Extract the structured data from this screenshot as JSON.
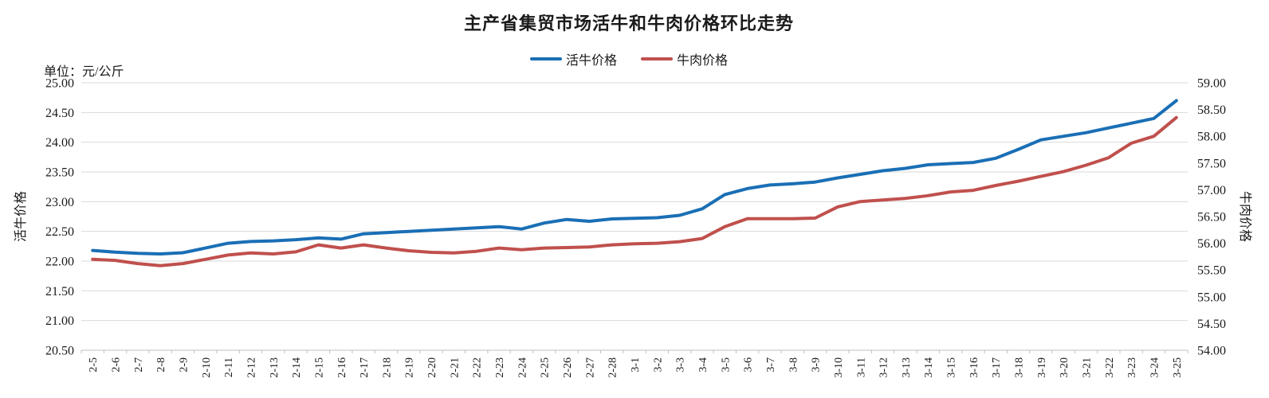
{
  "title": "主产省集贸市场活牛和牛肉价格环比走势",
  "unit_label": "单位：元/公斤",
  "legend": [
    {
      "label": "活牛价格",
      "color": "#1a6fb5"
    },
    {
      "label": "牛肉价格",
      "color": "#c0504d"
    }
  ],
  "colors": {
    "grid": "#d9d9d9",
    "axis": "#bfbfbf",
    "text": "#1a1a1a",
    "live_cattle": "#1a6fb5",
    "beef": "#c0504d"
  },
  "chart_data": {
    "type": "line",
    "title": "主产省集贸市场活牛和牛肉价格环比走势",
    "categories": [
      "2-5",
      "2-6",
      "2-7",
      "2-8",
      "2-9",
      "2-10",
      "2-11",
      "2-12",
      "2-13",
      "2-14",
      "2-15",
      "2-16",
      "2-17",
      "2-18",
      "2-19",
      "2-20",
      "2-21",
      "2-22",
      "2-23",
      "2-24",
      "2-25",
      "2-26",
      "2-27",
      "2-28",
      "3-1",
      "3-2",
      "3-3",
      "3-4",
      "3-5",
      "3-6",
      "3-7",
      "3-8",
      "3-9",
      "3-10",
      "3-11",
      "3-12",
      "3-13",
      "3-14",
      "3-15",
      "3-16",
      "3-17",
      "3-18",
      "3-19",
      "3-20",
      "3-21",
      "3-22",
      "3-23",
      "3-24",
      "3-25"
    ],
    "series": [
      {
        "name": "活牛价格",
        "axis": "left",
        "color": "#1a6fb5",
        "values": [
          22.18,
          22.15,
          22.13,
          22.12,
          22.14,
          22.22,
          22.3,
          22.33,
          22.34,
          22.36,
          22.39,
          22.37,
          22.46,
          22.48,
          22.5,
          22.52,
          22.54,
          22.56,
          22.58,
          22.54,
          22.64,
          22.7,
          22.67,
          22.71,
          22.72,
          22.73,
          22.77,
          22.88,
          23.12,
          23.22,
          23.28,
          23.3,
          23.33,
          23.4,
          23.46,
          23.52,
          23.56,
          23.62,
          23.64,
          23.66,
          23.73,
          23.88,
          24.04,
          24.1,
          24.16,
          24.24,
          24.32,
          24.4,
          24.7
        ]
      },
      {
        "name": "牛肉价格",
        "axis": "right",
        "color": "#c0504d",
        "values": [
          55.7,
          55.68,
          55.62,
          55.58,
          55.62,
          55.7,
          55.78,
          55.82,
          55.8,
          55.84,
          55.97,
          55.91,
          55.97,
          55.91,
          55.86,
          55.83,
          55.82,
          55.85,
          55.91,
          55.88,
          55.91,
          55.92,
          55.93,
          55.97,
          55.99,
          56.0,
          56.03,
          56.09,
          56.31,
          56.46,
          56.46,
          56.46,
          56.47,
          56.68,
          56.78,
          56.81,
          56.84,
          56.89,
          56.96,
          56.99,
          57.08,
          57.16,
          57.25,
          57.34,
          57.46,
          57.6,
          57.87,
          58.0,
          58.35
        ]
      }
    ],
    "left_axis": {
      "title": "活牛价格",
      "min": 20.5,
      "max": 25.0,
      "step": 0.5,
      "ticks": [
        "25.00",
        "24.50",
        "24.00",
        "23.50",
        "23.00",
        "22.50",
        "22.00",
        "21.50",
        "21.00",
        "20.50"
      ]
    },
    "right_axis": {
      "title": "牛肉价格",
      "min": 54.0,
      "max": 59.0,
      "step": 0.5,
      "ticks": [
        "59.00",
        "58.50",
        "58.00",
        "57.50",
        "57.00",
        "56.50",
        "56.00",
        "55.50",
        "55.00",
        "54.50",
        "54.00"
      ]
    },
    "grid": "horizontal",
    "legend_position": "top",
    "xlabel": "",
    "ylabel_left": "活牛价格",
    "ylabel_right": "牛肉价格"
  }
}
